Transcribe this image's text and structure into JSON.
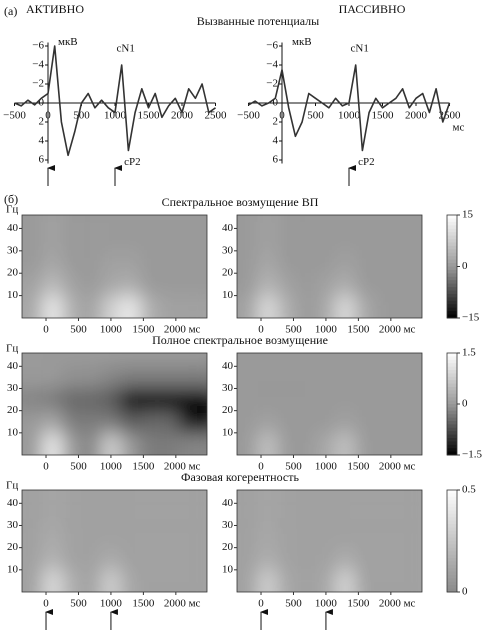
{
  "figure": {
    "panel_a": "(а)",
    "panel_b": "(б)",
    "erp_title": "Вызванные потенциалы",
    "freq_unit": "Гц"
  },
  "chart_data": [
    {
      "type": "line",
      "title": "АКТИВНО",
      "y_unit": "мкВ",
      "y_inverted": true,
      "x": [
        -500,
        -400,
        -300,
        -200,
        -100,
        0,
        100,
        200,
        300,
        400,
        500,
        600,
        700,
        800,
        900,
        1000,
        1100,
        1200,
        1300,
        1400,
        1500,
        1600,
        1700,
        1800,
        1900,
        2000,
        2100,
        2200,
        2300,
        2400,
        2500
      ],
      "series": [
        {
          "name": "ERP",
          "color": "#333333",
          "values": [
            0,
            0.3,
            -0.3,
            0.2,
            -0.5,
            -1,
            -6,
            2,
            5.5,
            3,
            0,
            -1,
            0.5,
            -0.3,
            0.5,
            1,
            -4,
            5,
            1,
            -1.5,
            0.5,
            -1,
            1.5,
            0.3,
            -0.5,
            1,
            -1.5,
            -0.5,
            -2,
            1,
            0.5
          ]
        }
      ],
      "xlim": [
        -500,
        2500
      ],
      "xticks": [
        {
          "value": -500,
          "label": "−500"
        },
        0,
        500,
        1000,
        1500,
        2000,
        2500
      ],
      "ylim": [
        -7,
        7
      ],
      "yticks": [
        {
          "value": -6,
          "label": "−6"
        },
        {
          "value": -4,
          "label": "−4"
        },
        {
          "value": -2,
          "label": "−2"
        },
        0,
        2,
        4,
        6
      ],
      "annotations": [
        {
          "text": "cN1",
          "x": 1100,
          "y": -4
        },
        {
          "text": "cP2",
          "x": 1200,
          "y": 5
        }
      ],
      "markers": [
        0,
        1000
      ]
    },
    {
      "type": "line",
      "title": "ПАССИВНО",
      "y_unit": "мкВ",
      "x_unit": "мс",
      "y_inverted": true,
      "x": [
        -500,
        -400,
        -300,
        -200,
        -100,
        0,
        100,
        200,
        300,
        400,
        500,
        600,
        700,
        800,
        900,
        1000,
        1100,
        1200,
        1300,
        1400,
        1500,
        1600,
        1700,
        1800,
        1900,
        2000,
        2100,
        2200,
        2300,
        2400,
        2500
      ],
      "series": [
        {
          "name": "ERP",
          "color": "#333333",
          "values": [
            0.2,
            -0.2,
            0.3,
            0,
            -0.5,
            -3.5,
            0.5,
            3.5,
            2,
            -1,
            -0.5,
            0,
            0.5,
            -0.5,
            0.3,
            0,
            -4,
            5,
            1,
            -0.5,
            0.5,
            0,
            -0.5,
            -1.5,
            0.5,
            -0.5,
            -1,
            1,
            -1.5,
            2,
            0
          ]
        }
      ],
      "xlim": [
        -500,
        2500
      ],
      "xticks": [
        {
          "value": -500,
          "label": "−500"
        },
        0,
        500,
        1000,
        1500,
        2000,
        2500
      ],
      "ylim": [
        -7,
        7
      ],
      "yticks": [
        {
          "value": -6,
          "label": "−6"
        },
        {
          "value": -4,
          "label": "−4"
        },
        {
          "value": -2,
          "label": "−2"
        },
        0,
        2,
        4,
        6
      ],
      "annotations": [
        {
          "text": "cN1",
          "x": 1100,
          "y": -4
        },
        {
          "text": "cP2",
          "x": 1200,
          "y": 5
        }
      ],
      "markers": [
        1000
      ]
    },
    {
      "type": "heatmap",
      "title": "Спектральное возмущение ВП",
      "x": [
        -200,
        100,
        400,
        700,
        1000,
        1300,
        1600,
        1900,
        2200
      ],
      "y": [
        5,
        15,
        25,
        35,
        45
      ],
      "values": [
        [
          2,
          12,
          3,
          1,
          8,
          12,
          3,
          1,
          1
        ],
        [
          1,
          5,
          1,
          0,
          2,
          3,
          0,
          0,
          0
        ],
        [
          0,
          2,
          0,
          0,
          1,
          1,
          0,
          0,
          0
        ],
        [
          0,
          1,
          0,
          0,
          0,
          0,
          0,
          0,
          0
        ],
        [
          0,
          1,
          0,
          0,
          0,
          0,
          0,
          0,
          0
        ]
      ],
      "clim": [
        -15,
        15
      ],
      "colormap": [
        "#000000",
        "#9a9a9a",
        "#ffffff"
      ],
      "xlim": [
        -370,
        2480
      ],
      "ylim": [
        0,
        46
      ],
      "xticks": [
        0,
        500,
        1000,
        1500,
        {
          "value": 2000,
          "label": "2000 мс"
        }
      ],
      "yticks": [
        10,
        20,
        30,
        40
      ]
    },
    {
      "type": "heatmap",
      "x": [
        -200,
        100,
        400,
        700,
        1000,
        1300,
        1600,
        1900,
        2200
      ],
      "y": [
        5,
        15,
        25,
        35,
        45
      ],
      "values": [
        [
          1,
          10,
          3,
          0,
          2,
          10,
          2,
          0,
          0
        ],
        [
          0,
          4,
          1,
          0,
          1,
          3,
          0,
          0,
          0
        ],
        [
          0,
          2,
          0,
          0,
          0,
          1,
          0,
          0,
          0
        ],
        [
          0,
          1,
          0,
          0,
          0,
          0,
          0,
          0,
          0
        ],
        [
          0,
          1,
          0,
          0,
          0,
          0,
          0,
          0,
          0
        ]
      ],
      "clim": [
        -15,
        15
      ],
      "colormap": [
        "#000000",
        "#9a9a9a",
        "#ffffff"
      ],
      "xlim": [
        -370,
        2480
      ],
      "ylim": [
        0,
        46
      ],
      "xticks": [
        0,
        500,
        1000,
        1500,
        {
          "value": 2000,
          "label": "2000 мс"
        }
      ],
      "yticks": [
        10,
        20,
        30,
        40
      ],
      "colorbar_ticks": [
        15,
        0,
        {
          "value": -15,
          "label": "−15"
        }
      ]
    },
    {
      "type": "heatmap",
      "title": "Полное спектральное возмущение",
      "x": [
        -200,
        100,
        400,
        700,
        1000,
        1300,
        1600,
        1900,
        2200
      ],
      "y": [
        5,
        15,
        25,
        35,
        45
      ],
      "values": [
        [
          0,
          1.2,
          0,
          -0.2,
          0.8,
          0,
          -0.3,
          -0.3,
          -0.2
        ],
        [
          0,
          0.2,
          -0.3,
          -0.3,
          -0.3,
          -0.6,
          -0.5,
          -0.5,
          -1.3
        ],
        [
          -0.2,
          -0.3,
          -0.5,
          -0.5,
          -0.6,
          -1.5,
          -1.5,
          -1.5,
          -1.5
        ],
        [
          0,
          0,
          -0.1,
          -0.1,
          -0.2,
          -0.3,
          -0.3,
          -0.3,
          -0.3
        ],
        [
          0,
          0,
          0,
          0,
          0,
          0,
          0,
          0,
          0
        ]
      ],
      "clim": [
        -1.5,
        1.5
      ],
      "colormap": [
        "#000000",
        "#9a9a9a",
        "#ffffff"
      ],
      "xlim": [
        -370,
        2480
      ],
      "ylim": [
        0,
        46
      ],
      "xticks": [
        0,
        500,
        1000,
        1500,
        {
          "value": 2000,
          "label": "2000 мс"
        }
      ],
      "yticks": [
        10,
        20,
        30,
        40
      ]
    },
    {
      "type": "heatmap",
      "x": [
        -200,
        100,
        400,
        700,
        1000,
        1300,
        1600,
        1900,
        2200
      ],
      "y": [
        5,
        15,
        25,
        35,
        45
      ],
      "values": [
        [
          0,
          0.6,
          0,
          0,
          0.2,
          0.6,
          0,
          0,
          0
        ],
        [
          0,
          0.1,
          0,
          0,
          0,
          0.1,
          0,
          0,
          0
        ],
        [
          0,
          0,
          0,
          0,
          0,
          0,
          0,
          0,
          0
        ],
        [
          0,
          0,
          0,
          0,
          0,
          0,
          0,
          0,
          0
        ],
        [
          0,
          0,
          0,
          0,
          0,
          0,
          0,
          0,
          0
        ]
      ],
      "clim": [
        -1.5,
        1.5
      ],
      "colormap": [
        "#000000",
        "#9a9a9a",
        "#ffffff"
      ],
      "xlim": [
        -370,
        2480
      ],
      "ylim": [
        0,
        46
      ],
      "xticks": [
        0,
        500,
        1000,
        1500,
        {
          "value": 2000,
          "label": "2000 мс"
        }
      ],
      "yticks": [
        10,
        20,
        30,
        40
      ],
      "colorbar_ticks": [
        1.5,
        0,
        {
          "value": -1.5,
          "label": "−1.5"
        }
      ]
    },
    {
      "type": "heatmap",
      "title": "Фазовая когерентность",
      "x": [
        -200,
        100,
        400,
        700,
        1000,
        1300,
        1600,
        1900,
        2200
      ],
      "y": [
        5,
        15,
        25,
        35,
        45
      ],
      "values": [
        [
          0.1,
          0.35,
          0.15,
          0.1,
          0.3,
          0.12,
          0.1,
          0.1,
          0.1
        ],
        [
          0.1,
          0.18,
          0.1,
          0.1,
          0.14,
          0.1,
          0.1,
          0.1,
          0.1
        ],
        [
          0.1,
          0.14,
          0.1,
          0.1,
          0.1,
          0.1,
          0.1,
          0.1,
          0.1
        ],
        [
          0.1,
          0.12,
          0.1,
          0.1,
          0.1,
          0.1,
          0.1,
          0.1,
          0.1
        ],
        [
          0.1,
          0.12,
          0.1,
          0.1,
          0.1,
          0.1,
          0.1,
          0.1,
          0.1
        ]
      ],
      "clim": [
        0,
        0.5
      ],
      "colormap": [
        "#8a8a8a",
        "#ffffff"
      ],
      "xlim": [
        -370,
        2480
      ],
      "ylim": [
        0,
        46
      ],
      "xticks": [
        0,
        500,
        1000,
        1500,
        {
          "value": 2000,
          "label": "2000 мс"
        }
      ],
      "yticks": [
        10,
        20,
        30,
        40
      ],
      "markers": [
        0,
        1000
      ]
    },
    {
      "type": "heatmap",
      "x": [
        -200,
        100,
        400,
        700,
        1000,
        1300,
        1600,
        1900,
        2200
      ],
      "y": [
        5,
        15,
        25,
        35,
        45
      ],
      "values": [
        [
          0.1,
          0.3,
          0.12,
          0.1,
          0.12,
          0.32,
          0.1,
          0.1,
          0.1
        ],
        [
          0.1,
          0.16,
          0.1,
          0.1,
          0.1,
          0.15,
          0.1,
          0.1,
          0.1
        ],
        [
          0.1,
          0.13,
          0.1,
          0.1,
          0.1,
          0.1,
          0.1,
          0.1,
          0.1
        ],
        [
          0.1,
          0.12,
          0.1,
          0.1,
          0.1,
          0.1,
          0.1,
          0.1,
          0.1
        ],
        [
          0.1,
          0.12,
          0.1,
          0.1,
          0.1,
          0.1,
          0.1,
          0.1,
          0.1
        ]
      ],
      "clim": [
        0,
        0.5
      ],
      "colormap": [
        "#8a8a8a",
        "#ffffff"
      ],
      "xlim": [
        -370,
        2480
      ],
      "ylim": [
        0,
        46
      ],
      "xticks": [
        0,
        500,
        1000,
        1500,
        {
          "value": 2000,
          "label": "2000 мс"
        }
      ],
      "yticks": [
        10,
        20,
        30,
        40
      ],
      "colorbar_ticks": [
        0.5,
        0
      ],
      "markers": [
        0,
        1000
      ]
    }
  ]
}
